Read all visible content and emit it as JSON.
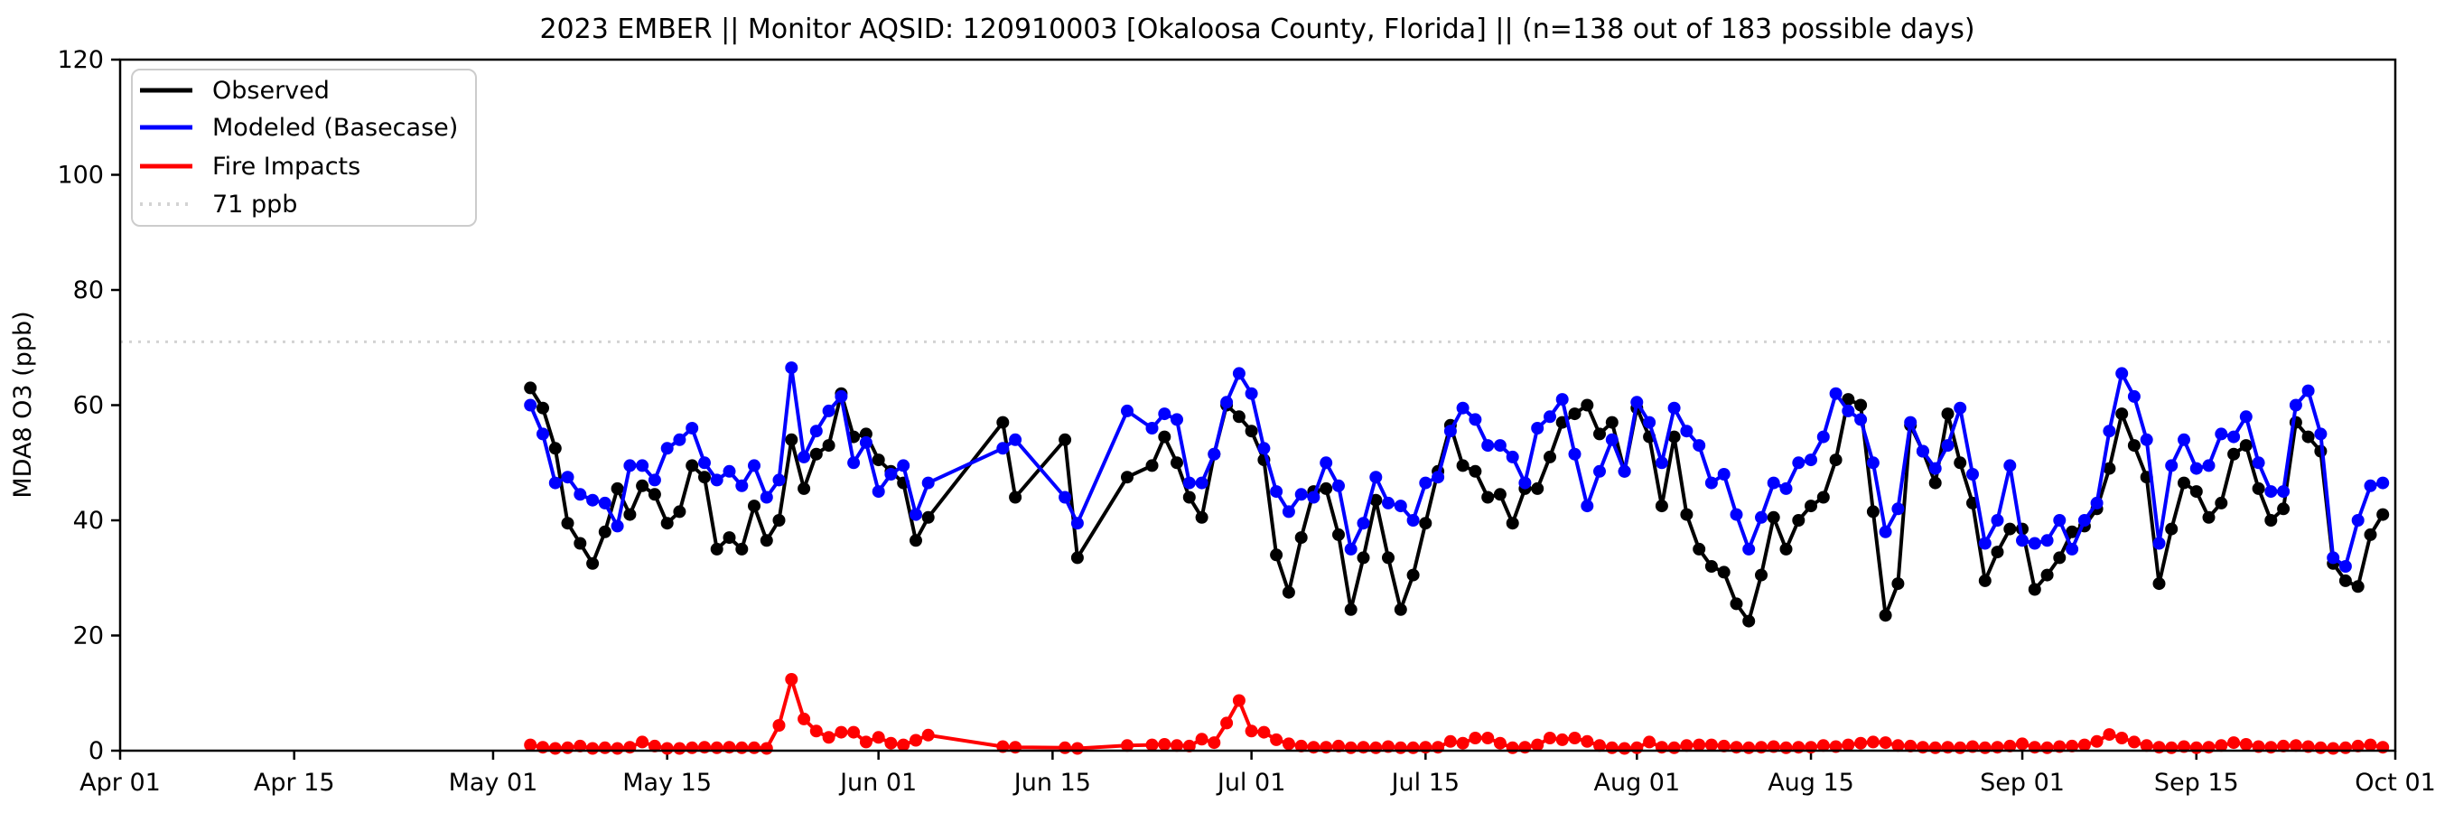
{
  "figure": {
    "background": "#ffffff"
  },
  "chart_data": {
    "type": "line",
    "title": "2023 EMBER || Monitor AQSID: 120910003 [Okaloosa County, Florida] || (n=138 out of 183 possible days)",
    "xlabel": "",
    "ylabel": "MDA8 O3 (ppb)",
    "ylim": [
      0,
      120
    ],
    "yticks": [
      0,
      20,
      40,
      60,
      80,
      100,
      120
    ],
    "xlim_days": [
      0,
      183
    ],
    "xticks": [
      {
        "label": "Apr 01",
        "day": 0
      },
      {
        "label": "Apr 15",
        "day": 14
      },
      {
        "label": "May 01",
        "day": 30
      },
      {
        "label": "May 15",
        "day": 44
      },
      {
        "label": "Jun 01",
        "day": 61
      },
      {
        "label": "Jun 15",
        "day": 75
      },
      {
        "label": "Jul 01",
        "day": 91
      },
      {
        "label": "Jul 15",
        "day": 105
      },
      {
        "label": "Aug 01",
        "day": 122
      },
      {
        "label": "Aug 15",
        "day": 136
      },
      {
        "label": "Sep 01",
        "day": 153
      },
      {
        "label": "Sep 15",
        "day": 167
      },
      {
        "label": "Oct 01",
        "day": 183
      }
    ],
    "grid": false,
    "legend_position": "upper left",
    "threshold": {
      "value": 71,
      "label": "71 ppb",
      "color": "#d3d3d3",
      "style": "dotted"
    },
    "x_unit": "days since Apr 01 2023; data span May 04 - Sep 30 with missing days Jun 06-10, Jun 13-15, Jun 18-20, Jun 22",
    "day_index": [
      33,
      34,
      35,
      36,
      37,
      38,
      39,
      40,
      41,
      42,
      43,
      44,
      45,
      46,
      47,
      48,
      49,
      50,
      51,
      52,
      53,
      54,
      55,
      56,
      57,
      58,
      59,
      60,
      61,
      62,
      63,
      64,
      65,
      71,
      72,
      76,
      77,
      81,
      83,
      84,
      85,
      86,
      87,
      88,
      89,
      90,
      91,
      92,
      93,
      94,
      95,
      96,
      97,
      98,
      99,
      100,
      101,
      102,
      103,
      104,
      105,
      106,
      107,
      108,
      109,
      110,
      111,
      112,
      113,
      114,
      115,
      116,
      117,
      118,
      119,
      120,
      121,
      122,
      123,
      124,
      125,
      126,
      127,
      128,
      129,
      130,
      131,
      132,
      133,
      134,
      135,
      136,
      137,
      138,
      139,
      140,
      141,
      142,
      143,
      144,
      145,
      146,
      147,
      148,
      149,
      150,
      151,
      152,
      153,
      154,
      155,
      156,
      157,
      158,
      159,
      160,
      161,
      162,
      163,
      164,
      165,
      166,
      167,
      168,
      169,
      170,
      171,
      172,
      173,
      174,
      175,
      176,
      177,
      178,
      179,
      180,
      181,
      182
    ],
    "series": [
      {
        "name": "Observed",
        "color": "#000000",
        "marker": "circle",
        "values": [
          63,
          59.5,
          52.5,
          39.5,
          36,
          32.5,
          38,
          45.5,
          41,
          46,
          44.5,
          39.5,
          41.5,
          49.5,
          47.5,
          35,
          37,
          35,
          42.5,
          36.5,
          40,
          54,
          45.5,
          51.5,
          53,
          62,
          54.5,
          55,
          50.5,
          48.5,
          46.5,
          36.5,
          40.5,
          57,
          44,
          54,
          33.5,
          47.5,
          49.5,
          54.5,
          50,
          44,
          40.5,
          51.5,
          60,
          58,
          55.5,
          50.5,
          34,
          27.5,
          37,
          45,
          45.5,
          37.5,
          24.5,
          33.5,
          43.5,
          33.5,
          24.5,
          30.5,
          39.5,
          48.5,
          56.5,
          49.5,
          48.5,
          44,
          44.5,
          39.5,
          45.5,
          45.5,
          51,
          57,
          58.5,
          60,
          55,
          57,
          48.5,
          59.5,
          54.5,
          42.5,
          54.5,
          41,
          35,
          32,
          31,
          25.5,
          22.5,
          30.5,
          40.5,
          35,
          40,
          42.5,
          44,
          50.5,
          61,
          60,
          41.5,
          23.5,
          29,
          56.5,
          52,
          46.5,
          58.5,
          50,
          43,
          29.5,
          34.5,
          38.5,
          38.5,
          28,
          30.5,
          33.5,
          38,
          39,
          42,
          49,
          58.5,
          53,
          47.5,
          29,
          38.5,
          46.5,
          45,
          40.5,
          43,
          51.5,
          53,
          45.5,
          40,
          42,
          57,
          54.5,
          52,
          32.5,
          29.5,
          28.5,
          37.5,
          41
        ]
      },
      {
        "name": "Modeled (Basecase)",
        "color": "#0000ff",
        "marker": "circle",
        "values": [
          60,
          55,
          46.5,
          47.5,
          44.5,
          43.5,
          43,
          39,
          49.5,
          49.5,
          47,
          52.5,
          54,
          56,
          50,
          47,
          48.5,
          46,
          49.5,
          44,
          47,
          66.5,
          51,
          55.5,
          59,
          61.5,
          50,
          53.5,
          45,
          48,
          49.5,
          41,
          46.5,
          52.5,
          54,
          44,
          39.5,
          59,
          56,
          58.5,
          57.5,
          46.5,
          46.5,
          51.5,
          60.5,
          65.5,
          62,
          52.5,
          45,
          41.5,
          44.5,
          44,
          50,
          46,
          35,
          39.5,
          47.5,
          43,
          42.5,
          40,
          46.5,
          47.5,
          55.5,
          59.5,
          57.5,
          53,
          53,
          51,
          46.5,
          56,
          58,
          61,
          51.5,
          42.5,
          48.5,
          54,
          48.5,
          60.5,
          57,
          50,
          59.5,
          55.5,
          53,
          46.5,
          48,
          41,
          35,
          40.5,
          46.5,
          45.5,
          50,
          50.5,
          54.5,
          62,
          59,
          57.5,
          50,
          38,
          42,
          57,
          52,
          49,
          53,
          59.5,
          48,
          36,
          40,
          49.5,
          36.5,
          36,
          36.5,
          40,
          35,
          40,
          43,
          55.5,
          65.5,
          61.5,
          54,
          36,
          49.5,
          54,
          49,
          49.5,
          55,
          54.5,
          58,
          50,
          45,
          45,
          60,
          62.5,
          55,
          33.5,
          32,
          40,
          46,
          46.5
        ]
      },
      {
        "name": "Fire Impacts",
        "color": "#ff0000",
        "marker": "circle",
        "values": [
          1,
          0.6,
          0.4,
          0.5,
          0.8,
          0.4,
          0.5,
          0.4,
          0.6,
          1.5,
          0.8,
          0.4,
          0.4,
          0.5,
          0.6,
          0.5,
          0.6,
          0.5,
          0.5,
          0.4,
          4.4,
          12.4,
          5.5,
          3.4,
          2.3,
          3.2,
          3.2,
          1.5,
          2.3,
          1.3,
          1,
          1.8,
          2.7,
          0.7,
          0.6,
          0.5,
          0.4,
          0.9,
          1,
          1.1,
          0.9,
          0.8,
          2,
          1.4,
          4.8,
          8.7,
          3.4,
          3.2,
          1.9,
          1.2,
          0.8,
          0.6,
          0.6,
          0.8,
          0.5,
          0.6,
          0.5,
          0.7,
          0.5,
          0.5,
          0.6,
          0.6,
          1.6,
          1.3,
          2.2,
          2.2,
          1.3,
          0.5,
          0.6,
          1,
          2.2,
          1.9,
          2.2,
          1.6,
          0.9,
          0.5,
          0.4,
          0.5,
          1.5,
          0.6,
          0.5,
          0.9,
          1,
          1,
          0.8,
          0.6,
          0.5,
          0.6,
          0.7,
          0.5,
          0.6,
          0.6,
          0.9,
          0.7,
          1,
          1.3,
          1.5,
          1.4,
          0.9,
          0.8,
          0.6,
          0.5,
          0.6,
          0.5,
          0.7,
          0.5,
          0.6,
          0.8,
          1.2,
          0.6,
          0.5,
          0.7,
          0.8,
          1,
          1.6,
          2.8,
          2.2,
          1.5,
          0.9,
          0.6,
          0.5,
          0.7,
          0.5,
          0.6,
          0.9,
          1.4,
          1.1,
          0.7,
          0.6,
          0.8,
          0.9,
          0.7,
          0.5,
          0.4,
          0.5,
          0.8,
          1,
          0.6
        ]
      }
    ]
  }
}
